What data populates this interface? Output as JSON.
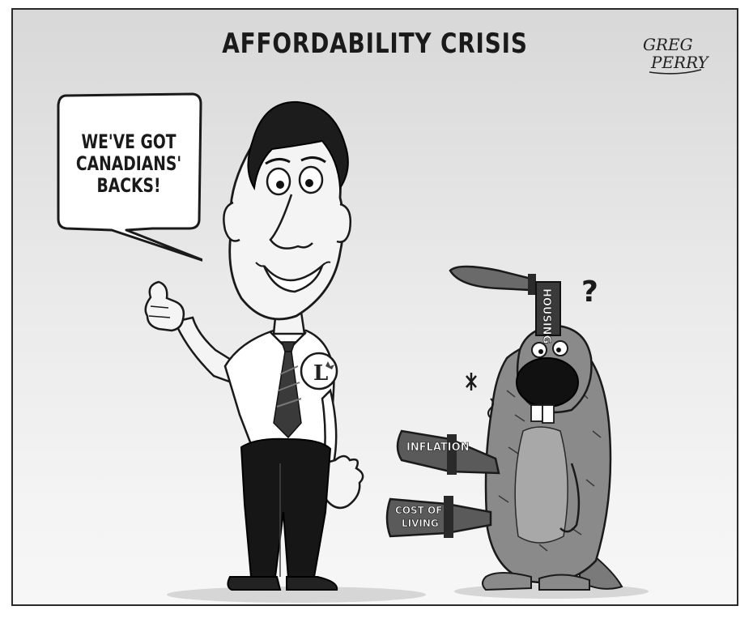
{
  "cartoon": {
    "title": "AFFORDABILITY CRISIS",
    "speech_balloon": "WE'VE GOT\nCANADIANS'\nBACKS!",
    "lapel_pin_letter": "L",
    "knife_labels": {
      "top": "HOUSING",
      "middle": "INFLATION",
      "bottom_line1": "COST OF",
      "bottom_line2": "LIVING"
    },
    "question_mark": "?",
    "signature_line1": "GREG",
    "signature_line2": "PERRY"
  }
}
